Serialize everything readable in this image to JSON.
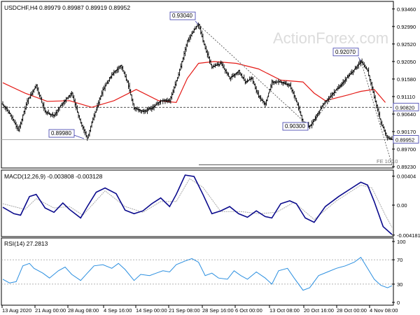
{
  "chart_data": [
    {
      "type": "ohlc",
      "title": "USDCHF,H4  0.89979 0.89987 0.89919 0.89952",
      "watermark": "ActionForex.com",
      "y_ticks": [
        "0.93460",
        "0.92990",
        "0.92520",
        "0.92050",
        "0.91580",
        "0.91110",
        "0.90640",
        "0.90170",
        "0.89700",
        "0.89230"
      ],
      "ylim": [
        0.8923,
        0.9355
      ],
      "current_price": {
        "label": "0.89952",
        "value": 0.89952
      },
      "ref_level": {
        "label": "0.90820",
        "value": 0.9082
      },
      "annotations": [
        {
          "label": "0.93040",
          "value": 0.9304
        },
        {
          "label": "0.92070",
          "value": 0.9207
        },
        {
          "label": "0.90300",
          "value": 0.903
        },
        {
          "label": "0.89980",
          "value": 0.8998
        }
      ],
      "fe_label": "FE 100.0",
      "fe_level": 0.8928,
      "x_ticks": [
        "13 Aug 2020",
        "21 Aug 00:00",
        "28 Aug 08:00",
        "4 Sep 16:00",
        "14 Sep 00:00",
        "21 Sep 08:00",
        "28 Sep 16:00",
        "6 Oct 00:00",
        "13 Oct 08:00",
        "20 Oct 16:00",
        "28 Oct 00:00",
        "4 Nov 08:00"
      ],
      "price_path": [
        [
          0,
          0.909
        ],
        [
          6,
          0.9065
        ],
        [
          14,
          0.902
        ],
        [
          22,
          0.91
        ],
        [
          30,
          0.914
        ],
        [
          38,
          0.907
        ],
        [
          46,
          0.906
        ],
        [
          54,
          0.9095
        ],
        [
          62,
          0.912
        ],
        [
          70,
          0.904
        ],
        [
          76,
          0.9
        ],
        [
          82,
          0.906
        ],
        [
          90,
          0.913
        ],
        [
          98,
          0.917
        ],
        [
          106,
          0.9195
        ],
        [
          112,
          0.915
        ],
        [
          118,
          0.908
        ],
        [
          126,
          0.907
        ],
        [
          134,
          0.908
        ],
        [
          142,
          0.91
        ],
        [
          150,
          0.91
        ],
        [
          158,
          0.917
        ],
        [
          166,
          0.926
        ],
        [
          172,
          0.929
        ],
        [
          176,
          0.9304
        ],
        [
          182,
          0.924
        ],
        [
          188,
          0.919
        ],
        [
          196,
          0.92
        ],
        [
          204,
          0.916
        ],
        [
          212,
          0.918
        ],
        [
          218,
          0.915
        ],
        [
          224,
          0.916
        ],
        [
          230,
          0.911
        ],
        [
          236,
          0.909
        ],
        [
          242,
          0.915
        ],
        [
          250,
          0.915
        ],
        [
          258,
          0.914
        ],
        [
          264,
          0.91
        ],
        [
          270,
          0.904
        ],
        [
          276,
          0.903
        ],
        [
          282,
          0.906
        ],
        [
          288,
          0.909
        ],
        [
          294,
          0.911
        ],
        [
          300,
          0.913
        ],
        [
          306,
          0.915
        ],
        [
          312,
          0.917
        ],
        [
          318,
          0.919
        ],
        [
          322,
          0.9207
        ],
        [
          328,
          0.918
        ],
        [
          334,
          0.911
        ],
        [
          340,
          0.904
        ],
        [
          346,
          0.9
        ],
        [
          350,
          0.8995
        ]
      ],
      "ma_path": [
        [
          0,
          0.9148
        ],
        [
          20,
          0.912
        ],
        [
          40,
          0.9098
        ],
        [
          60,
          0.91
        ],
        [
          80,
          0.9082
        ],
        [
          100,
          0.91
        ],
        [
          120,
          0.913
        ],
        [
          140,
          0.91
        ],
        [
          156,
          0.9095
        ],
        [
          166,
          0.916
        ],
        [
          176,
          0.92
        ],
        [
          190,
          0.9205
        ],
        [
          210,
          0.92
        ],
        [
          230,
          0.9185
        ],
        [
          250,
          0.9155
        ],
        [
          270,
          0.915
        ],
        [
          280,
          0.912
        ],
        [
          290,
          0.91
        ],
        [
          310,
          0.9115
        ],
        [
          322,
          0.9125
        ],
        [
          334,
          0.913
        ],
        [
          344,
          0.9095
        ]
      ],
      "fib_line": [
        [
          176,
          0.9304
        ],
        [
          276,
          0.903
        ],
        [
          322,
          0.9207
        ],
        [
          350,
          0.8928
        ]
      ]
    },
    {
      "type": "line",
      "label": "MACD(12,26,9) -0.003808 -0.003128",
      "y_ticks": [
        "0.00404",
        "0.00",
        "-0.004181"
      ],
      "ylim": [
        -0.0042,
        0.0045
      ],
      "macd": [
        [
          0,
          -0.0003
        ],
        [
          10,
          -0.0012
        ],
        [
          16,
          -0.0014
        ],
        [
          24,
          0.0012
        ],
        [
          30,
          0.0015
        ],
        [
          38,
          -0.0004
        ],
        [
          46,
          -0.001
        ],
        [
          54,
          0.0003
        ],
        [
          60,
          -0.0006
        ],
        [
          70,
          -0.0018
        ],
        [
          76,
          -0.0002
        ],
        [
          84,
          0.0018
        ],
        [
          92,
          0.0024
        ],
        [
          102,
          0.0016
        ],
        [
          110,
          -0.0007
        ],
        [
          118,
          -0.0012
        ],
        [
          126,
          -0.0008
        ],
        [
          134,
          0.0002
        ],
        [
          142,
          0.001
        ],
        [
          150,
          -0.0002
        ],
        [
          156,
          0.0015
        ],
        [
          164,
          0.0042
        ],
        [
          172,
          0.004
        ],
        [
          180,
          0.0015
        ],
        [
          188,
          -0.0012
        ],
        [
          196,
          -0.0008
        ],
        [
          204,
          -0.0002
        ],
        [
          212,
          -0.0012
        ],
        [
          220,
          -0.0017
        ],
        [
          228,
          -0.0008
        ],
        [
          236,
          -0.0016
        ],
        [
          242,
          -0.0018
        ],
        [
          250,
          0.0002
        ],
        [
          258,
          0.0006
        ],
        [
          264,
          0.0002
        ],
        [
          272,
          -0.0018
        ],
        [
          280,
          -0.0024
        ],
        [
          290,
          -0.0002
        ],
        [
          302,
          0.0012
        ],
        [
          312,
          0.0022
        ],
        [
          322,
          0.0032
        ],
        [
          328,
          0.0028
        ],
        [
          334,
          0.0005
        ],
        [
          342,
          -0.003
        ],
        [
          350,
          -0.0041
        ]
      ],
      "signal": [
        [
          0,
          0.0002
        ],
        [
          20,
          -0.0006
        ],
        [
          30,
          0.0009
        ],
        [
          46,
          -0.0004
        ],
        [
          60,
          -0.0002
        ],
        [
          72,
          -0.0014
        ],
        [
          92,
          0.002
        ],
        [
          110,
          -0.0002
        ],
        [
          126,
          -0.001
        ],
        [
          142,
          0.0005
        ],
        [
          156,
          0.0005
        ],
        [
          168,
          0.0037
        ],
        [
          180,
          0.0025
        ],
        [
          196,
          -0.0009
        ],
        [
          214,
          -0.0009
        ],
        [
          230,
          -0.0012
        ],
        [
          246,
          -0.001
        ],
        [
          262,
          0.0004
        ],
        [
          280,
          -0.002
        ],
        [
          300,
          0.0006
        ],
        [
          322,
          0.0028
        ],
        [
          332,
          0.0024
        ],
        [
          344,
          -0.0014
        ],
        [
          350,
          -0.0031
        ]
      ]
    },
    {
      "type": "line",
      "label": "RSI(14) 27.2813",
      "y_ticks": [
        "100",
        "70",
        "30",
        "0"
      ],
      "ylim": [
        0,
        100
      ],
      "levels": [
        70,
        30
      ],
      "values": [
        [
          0,
          38
        ],
        [
          6,
          32
        ],
        [
          12,
          34
        ],
        [
          18,
          60
        ],
        [
          24,
          64
        ],
        [
          28,
          56
        ],
        [
          36,
          48
        ],
        [
          42,
          40
        ],
        [
          50,
          52
        ],
        [
          56,
          58
        ],
        [
          62,
          46
        ],
        [
          70,
          36
        ],
        [
          76,
          48
        ],
        [
          82,
          60
        ],
        [
          90,
          62
        ],
        [
          98,
          56
        ],
        [
          104,
          64
        ],
        [
          110,
          54
        ],
        [
          118,
          36
        ],
        [
          124,
          46
        ],
        [
          132,
          44
        ],
        [
          138,
          48
        ],
        [
          144,
          52
        ],
        [
          150,
          50
        ],
        [
          156,
          62
        ],
        [
          164,
          68
        ],
        [
          170,
          72
        ],
        [
          176,
          66
        ],
        [
          182,
          44
        ],
        [
          188,
          48
        ],
        [
          194,
          40
        ],
        [
          202,
          38
        ],
        [
          208,
          52
        ],
        [
          214,
          44
        ],
        [
          220,
          38
        ],
        [
          228,
          50
        ],
        [
          236,
          40
        ],
        [
          242,
          30
        ],
        [
          248,
          52
        ],
        [
          256,
          56
        ],
        [
          262,
          40
        ],
        [
          270,
          20
        ],
        [
          276,
          24
        ],
        [
          284,
          44
        ],
        [
          292,
          50
        ],
        [
          300,
          56
        ],
        [
          308,
          60
        ],
        [
          316,
          66
        ],
        [
          322,
          74
        ],
        [
          328,
          56
        ],
        [
          334,
          38
        ],
        [
          340,
          28
        ],
        [
          346,
          24
        ],
        [
          350,
          27.3
        ]
      ]
    }
  ]
}
